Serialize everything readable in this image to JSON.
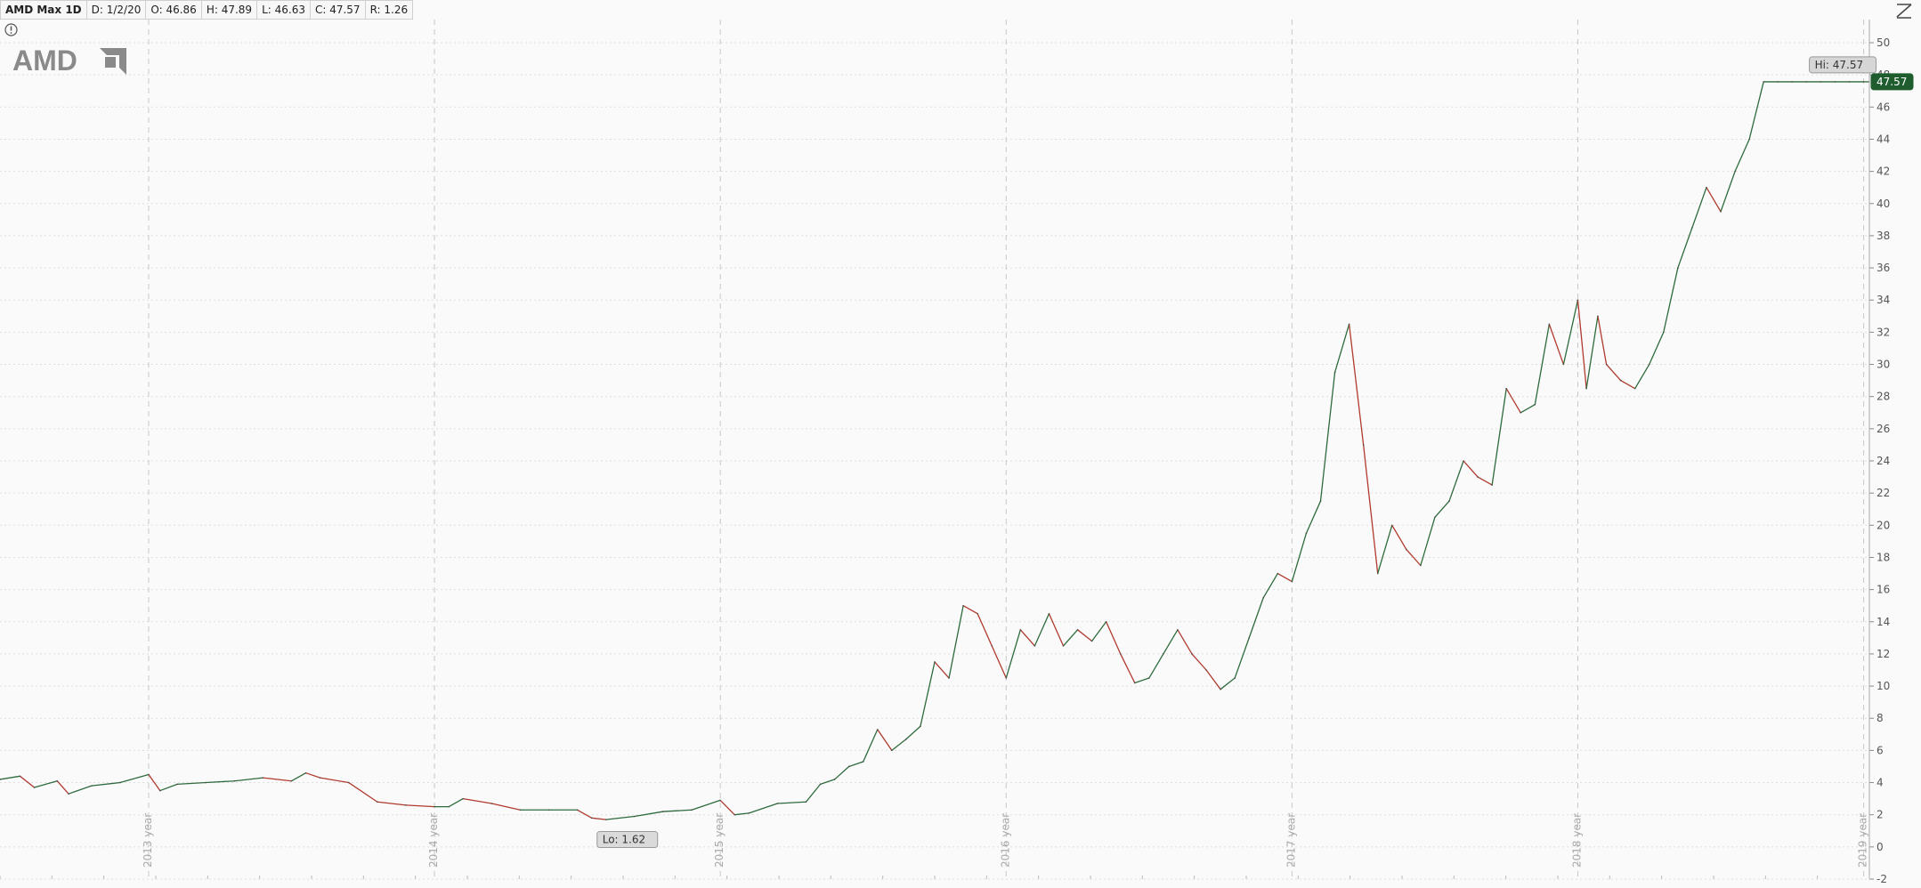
{
  "toolbar": {
    "symbol": "AMD Max 1D",
    "date": "D: 1/2/20",
    "open": "O: 46.86",
    "high": "H: 47.89",
    "low": "L: 46.63",
    "close": "C: 47.57",
    "range": "R: 1.26"
  },
  "logo": {
    "text": "AMD",
    "color": "#8a8a8a"
  },
  "icons": {
    "info": "info-circle-icon",
    "corner": "chart-style-icon"
  },
  "colors": {
    "up": "#2d6b3c",
    "down": "#b03a2e",
    "line": "#4a4a4a",
    "last_price_bg": "#1f5c2e"
  },
  "chart_data": {
    "type": "line",
    "title": "",
    "xlabel": "",
    "ylabel": "",
    "ylim": [
      -2,
      50
    ],
    "y_ticks": [
      -2,
      0,
      2,
      4,
      6,
      8,
      10,
      12,
      14,
      16,
      18,
      20,
      22,
      24,
      26,
      28,
      30,
      32,
      34,
      36,
      38,
      40,
      42,
      44,
      46,
      48,
      50
    ],
    "xlim": [
      2012.48,
      2019.02
    ],
    "x_ticks": [
      {
        "label": "2013 year",
        "x": 2013.0
      },
      {
        "label": "2014 year",
        "x": 2014.0
      },
      {
        "label": "2015 year",
        "x": 2015.0
      },
      {
        "label": "2016 year",
        "x": 2016.0
      },
      {
        "label": "2017 year",
        "x": 2017.0
      },
      {
        "label": "2018 year",
        "x": 2018.0
      },
      {
        "label": "2019 year",
        "x": 2019.0
      }
    ],
    "grid": true,
    "series": [
      {
        "x": [
          2012.48,
          2012.55,
          2012.6,
          2012.68,
          2012.72,
          2012.8,
          2012.9,
          2013.0,
          2013.04,
          2013.1,
          2013.2,
          2013.3,
          2013.4,
          2013.5,
          2013.55,
          2013.6,
          2013.7,
          2013.8,
          2013.9,
          2014.0,
          2014.05,
          2014.1,
          2014.2,
          2014.3,
          2014.4,
          2014.5,
          2014.55,
          2014.6,
          2014.7,
          2014.8,
          2014.9,
          2015.0,
          2015.05,
          2015.1,
          2015.2,
          2015.3,
          2015.35,
          2015.4,
          2015.45,
          2015.5,
          2015.55,
          2015.6,
          2015.65,
          2015.7,
          2015.75,
          2015.8,
          2015.85,
          2015.9,
          2015.95,
          2016.0,
          2016.05,
          2016.1,
          2016.15,
          2016.2,
          2016.25,
          2016.3,
          2016.35,
          2016.4,
          2016.45,
          2016.5,
          2016.55,
          2016.6,
          2016.65,
          2016.7,
          2016.75,
          2016.8,
          2016.85,
          2016.9,
          2016.95,
          2017.0,
          2017.05,
          2017.1,
          2017.15,
          2017.2,
          2017.25,
          2017.3,
          2017.35,
          2017.4,
          2017.45,
          2017.5,
          2017.55,
          2017.6,
          2017.65,
          2017.7,
          2017.75,
          2017.8,
          2017.85,
          2017.9,
          2017.95,
          2018.0,
          2018.03,
          2018.07,
          2018.1,
          2018.15,
          2018.2,
          2018.25,
          2018.3,
          2018.35,
          2018.4,
          2018.45,
          2018.5,
          2018.55,
          2018.6,
          2018.65,
          2018.7,
          2018.75,
          2018.8,
          2018.85,
          2018.9,
          2018.95,
          2019.0,
          2019.02
        ],
        "y": [
          4.2,
          4.4,
          3.7,
          4.1,
          3.3,
          3.8,
          4.0,
          4.5,
          3.5,
          3.9,
          4.0,
          4.1,
          4.3,
          4.1,
          4.6,
          4.3,
          4.0,
          2.8,
          2.6,
          2.5,
          2.5,
          3.0,
          2.7,
          2.3,
          2.3,
          2.3,
          1.8,
          1.7,
          1.9,
          2.2,
          2.3,
          2.9,
          2.0,
          2.1,
          2.7,
          2.8,
          3.9,
          4.2,
          5.0,
          5.3,
          7.3,
          6.0,
          6.7,
          7.5,
          11.5,
          10.5,
          15.0,
          14.5,
          12.5,
          10.5,
          13.5,
          12.5,
          14.5,
          12.5,
          13.5,
          12.8,
          14.0,
          12.0,
          10.2,
          10.5,
          12.0,
          13.5,
          12.0,
          11.0,
          9.8,
          10.5,
          13.0,
          15.5,
          17.0,
          16.5,
          19.5,
          21.5,
          29.5,
          32.5,
          25.0,
          17.0,
          20.0,
          18.5,
          17.5,
          20.5,
          21.5,
          24.0,
          23.0,
          22.5,
          28.5,
          27.0,
          27.5,
          32.5,
          30.0,
          34.0,
          28.5,
          33.0,
          30.0,
          29.0,
          28.5,
          30.0,
          32.0,
          36.0,
          38.5,
          41.0,
          39.5,
          42.0,
          44.0,
          47.57,
          47.57,
          47.57,
          47.57,
          47.57,
          47.57,
          47.57,
          47.57,
          47.57
        ]
      }
    ],
    "annotations": [
      {
        "label": "Hi: 47.57",
        "x": 2019.0,
        "y": 47.57
      },
      {
        "label": "Lo: 1.62",
        "x": 2014.6,
        "y": 1.62
      },
      {
        "label": "47.57",
        "x": 2019.02,
        "y": 47.57,
        "kind": "last-price"
      }
    ]
  }
}
